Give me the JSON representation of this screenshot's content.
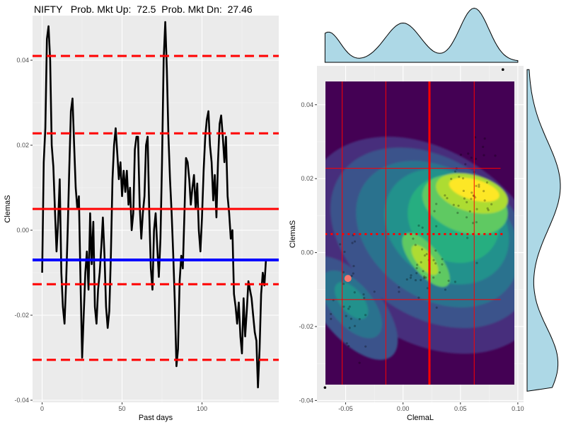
{
  "header": {
    "title": "NIFTY   Prob. Mkt Up:  72.5  Prob. Mkt Dn:  27.46"
  },
  "chart_data": [
    {
      "type": "line",
      "xlabel": "Past days",
      "ylabel": "ClemaS",
      "xlim": [
        -6,
        148
      ],
      "ylim": [
        -0.0405,
        0.0505
      ],
      "x_ticks": [
        0,
        50,
        100
      ],
      "x_tick_labels": [
        "0",
        "50",
        "100"
      ],
      "y_ticks": [
        -0.04,
        -0.02,
        0.0,
        0.02,
        0.04
      ],
      "y_tick_labels": [
        "-0.04",
        "-0.02",
        "0.00",
        "0.02",
        "0.04"
      ],
      "grid": true,
      "series": [
        {
          "color": "#000000",
          "x": [
            0,
            1,
            2,
            3,
            4,
            5,
            6,
            7,
            8,
            9,
            10,
            11,
            12,
            13,
            14,
            15,
            16,
            17,
            18,
            19,
            20,
            21,
            22,
            23,
            24,
            25,
            26,
            27,
            28,
            29,
            30,
            31,
            32,
            33,
            34,
            35,
            36,
            37,
            38,
            39,
            40,
            41,
            42,
            43,
            44,
            45,
            46,
            47,
            48,
            49,
            50,
            51,
            52,
            53,
            54,
            55,
            56,
            57,
            58,
            59,
            60,
            61,
            62,
            63,
            64,
            65,
            66,
            67,
            68,
            69,
            70,
            71,
            72,
            73,
            74,
            75,
            76,
            77,
            78,
            79,
            80,
            81,
            82,
            83,
            84,
            85,
            86,
            87,
            88,
            89,
            90,
            91,
            92,
            93,
            94,
            95,
            96,
            97,
            98,
            99,
            100,
            101,
            102,
            103,
            104,
            105,
            106,
            107,
            108,
            109,
            110,
            111,
            112,
            113,
            114,
            115,
            116,
            117,
            118,
            119,
            120,
            121,
            122,
            123,
            124,
            125,
            126,
            127,
            128,
            129,
            130,
            131,
            132,
            133,
            134,
            135,
            136,
            137,
            138,
            139,
            140
          ],
          "y": [
            -0.01,
            0.016,
            0.024,
            0.045,
            0.048,
            0.04,
            0.02,
            0.015,
            0.005,
            -0.005,
            0.002,
            0.012,
            -0.01,
            -0.018,
            -0.022,
            -0.012,
            0.0,
            0.015,
            0.028,
            0.031,
            0.02,
            0.01,
            0.005,
            0.008,
            -0.012,
            -0.03,
            -0.02,
            -0.01,
            -0.005,
            -0.014,
            0.004,
            -0.008,
            0.002,
            -0.018,
            -0.022,
            -0.014,
            -0.01,
            -0.004,
            0.003,
            -0.006,
            -0.018,
            -0.023,
            -0.019,
            -0.006,
            0.012,
            0.02,
            0.024,
            0.018,
            0.012,
            0.016,
            0.008,
            0.014,
            0.009,
            0.014,
            0.006,
            0.01,
            0.0,
            0.004,
            0.019,
            0.022,
            0.022,
            0.006,
            -0.002,
            0.004,
            0.008,
            0.02,
            0.022,
            0.004,
            -0.009,
            -0.014,
            0.0,
            0.004,
            -0.004,
            -0.011,
            -0.002,
            0.016,
            0.04,
            0.049,
            0.038,
            0.022,
            0.012,
            0.004,
            -0.006,
            -0.017,
            -0.032,
            -0.028,
            -0.012,
            -0.006,
            -0.009,
            0.004,
            0.017,
            0.016,
            0.012,
            0.006,
            0.01,
            0.013,
            0.005,
            0.011,
            0.0,
            -0.005,
            0.003,
            0.014,
            0.022,
            0.026,
            0.028,
            0.02,
            0.016,
            0.007,
            0.013,
            0.003,
            0.016,
            0.025,
            0.027,
            0.022,
            0.016,
            0.022,
            0.008,
            0.004,
            -0.002,
            0.0,
            -0.015,
            -0.018,
            -0.022,
            -0.017,
            -0.025,
            -0.029,
            -0.016,
            -0.025,
            -0.019,
            -0.012,
            -0.014,
            -0.016,
            -0.02,
            -0.024,
            -0.026,
            -0.037,
            -0.028,
            -0.015,
            -0.01,
            -0.013,
            -0.007
          ]
        }
      ],
      "hlines": [
        {
          "y": 0.041,
          "color": "#ff0000",
          "style": "dashed"
        },
        {
          "y": 0.0228,
          "color": "#ff0000",
          "style": "dashed"
        },
        {
          "y": 0.005,
          "color": "#ff0000",
          "style": "solid"
        },
        {
          "y": -0.007,
          "color": "#0000ff",
          "style": "solid"
        },
        {
          "y": -0.0127,
          "color": "#ff0000",
          "style": "dashed"
        },
        {
          "y": -0.0305,
          "color": "#ff0000",
          "style": "dashed"
        }
      ]
    },
    {
      "type": "heatmap",
      "xlabel": "ClemaL",
      "ylabel": "ClemaS",
      "xlim": [
        -0.075,
        0.105
      ],
      "ylim": [
        -0.0405,
        0.0505
      ],
      "x_ticks": [
        -0.05,
        0.0,
        0.05,
        0.1
      ],
      "x_tick_labels": [
        "-0.05",
        "0.00",
        "0.05",
        "0.10"
      ],
      "y_ticks": [
        -0.04,
        -0.02,
        0.0,
        0.02,
        0.04
      ],
      "y_tick_labels": [
        "-0.04",
        "-0.02",
        "0.00",
        "0.02",
        "0.04"
      ],
      "density_colors": [
        "#440154",
        "#472d7b",
        "#3b528b",
        "#2c728e",
        "#21918c",
        "#28ae80",
        "#5ec962",
        "#addc30",
        "#fde725"
      ],
      "peaks": [
        {
          "x": 0.062,
          "y": 0.017
        },
        {
          "x": 0.018,
          "y": -0.002
        },
        {
          "x": -0.045,
          "y": -0.013
        }
      ],
      "vlines": [
        {
          "x": -0.053,
          "color": "#ff0000",
          "style": "solid"
        },
        {
          "x": -0.015,
          "color": "#ff0000",
          "style": "solid"
        },
        {
          "x": 0.023,
          "color": "#ff0000",
          "style": "solid"
        },
        {
          "x": 0.023,
          "color": "#ff0000",
          "style": "dotted"
        },
        {
          "x": 0.062,
          "color": "#ff0000",
          "style": "solid"
        },
        {
          "x": 0.1,
          "color": "#ff0000",
          "style": "solid"
        }
      ],
      "hlines": [
        {
          "y": 0.0228,
          "color": "#ff0000",
          "style": "solid"
        },
        {
          "y": 0.005,
          "color": "#ff0000",
          "style": "dotted"
        },
        {
          "y": -0.0127,
          "color": "#ff0000",
          "style": "solid"
        }
      ],
      "current_point": {
        "x": -0.048,
        "y": -0.007,
        "color": "#f8766d"
      },
      "marginal_color": "#add8e6",
      "marginal_x_modes": [
        -0.065,
        0.0,
        0.062
      ],
      "marginal_y_modes": [
        -0.03,
        0.018
      ]
    }
  ]
}
